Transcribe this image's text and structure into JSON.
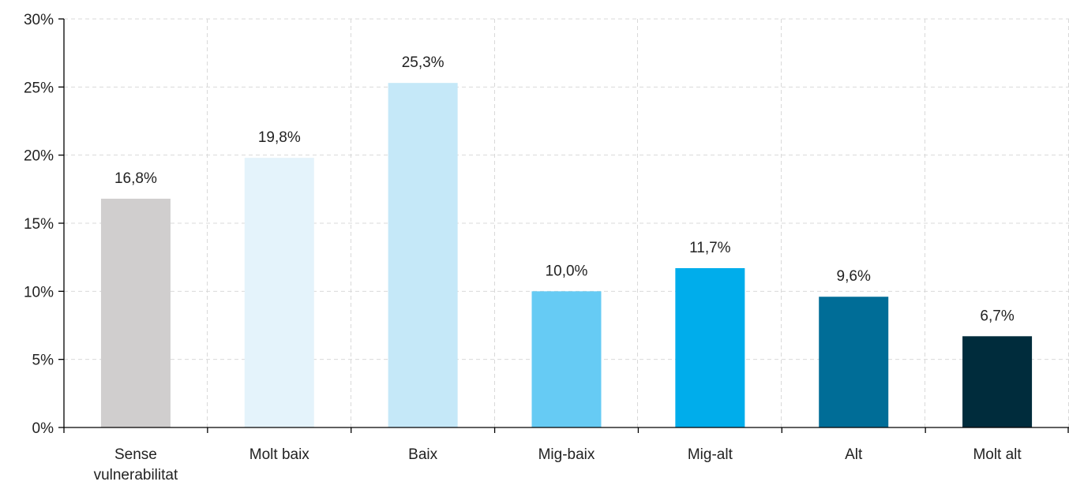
{
  "chart_data": {
    "type": "bar",
    "categories": [
      [
        "Sense",
        "vulnerabilitat"
      ],
      [
        "Molt baix"
      ],
      [
        "Baix"
      ],
      [
        "Mig-baix"
      ],
      [
        "Mig-alt"
      ],
      [
        "Alt"
      ],
      [
        "Molt alt"
      ]
    ],
    "values": [
      16.8,
      19.8,
      25.3,
      10.0,
      11.7,
      9.6,
      6.7
    ],
    "data_labels": [
      "16,8%",
      "19,8%",
      "25,3%",
      "10,0%",
      "11,7%",
      "9,6%",
      "6,7%"
    ],
    "bar_colors": [
      "#d0cece",
      "#e4f3fb",
      "#c5e8f8",
      "#66cbf4",
      "#00adeb",
      "#006d97",
      "#002c3c"
    ],
    "ylim": [
      0,
      30
    ],
    "yticks": [
      0,
      5,
      10,
      15,
      20,
      25,
      30
    ],
    "ytick_labels": [
      "0%",
      "5%",
      "10%",
      "15%",
      "20%",
      "25%",
      "30%"
    ],
    "title": "",
    "xlabel": "",
    "ylabel": "",
    "grid": true,
    "legend": "none"
  }
}
